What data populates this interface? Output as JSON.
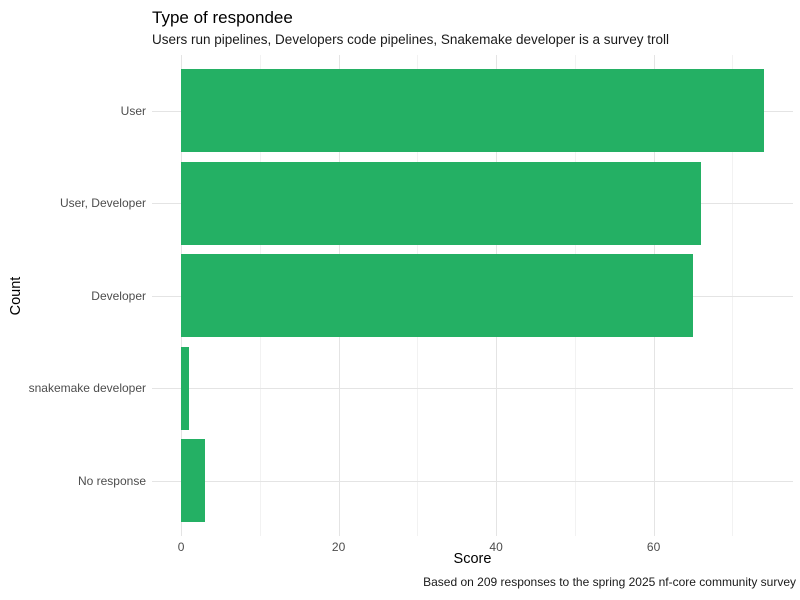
{
  "chart_data": {
    "type": "bar",
    "orientation": "horizontal",
    "title": "Type of respondee",
    "subtitle": "Users run pipelines, Developers code pipelines, Snakemake developer is a survey troll",
    "caption": "Based on 209 responses to the spring 2025 nf-core community survey",
    "xlabel": "Score",
    "ylabel": "Count",
    "categories": [
      "User",
      "User, Developer",
      "Developer",
      "snakemake developer",
      "No response"
    ],
    "values": [
      74,
      66,
      65,
      1,
      3
    ],
    "x_major_ticks": [
      0,
      20,
      40,
      60
    ],
    "x_minor_ticks": [
      10,
      30,
      50,
      70
    ],
    "xlim": [
      -3.7,
      77.7
    ],
    "grid": "on",
    "legend": "none",
    "colors": {
      "bar_fill": "#24b064",
      "grid_major": "#e4e4e4",
      "grid_minor": "#f2f2f2",
      "axis_text": "#4d4d4d",
      "title_text": "#000000"
    }
  }
}
